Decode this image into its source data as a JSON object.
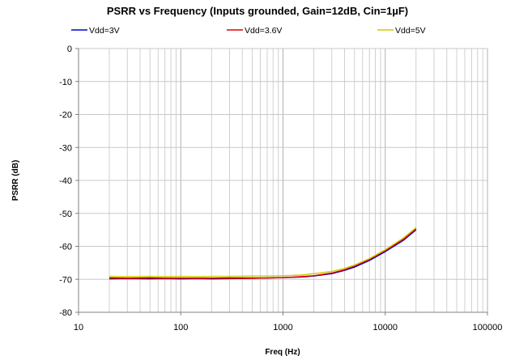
{
  "chart_data": {
    "type": "line",
    "title": "PSRR vs Frequency (Inputs grounded, Gain=12dB, Cin=1µF)",
    "xlabel": "Freq (Hz)",
    "ylabel": "PSRR (dB)",
    "xscale": "log",
    "xlim": [
      10,
      100000
    ],
    "ylim": [
      -80,
      0
    ],
    "xticks": [
      10,
      100,
      1000,
      10000,
      100000
    ],
    "xtick_labels": [
      "10",
      "100",
      "1000",
      "10000",
      "100000"
    ],
    "yticks": [
      0,
      -10,
      -20,
      -30,
      -40,
      -50,
      -60,
      -70,
      -80
    ],
    "ytick_labels": [
      "0",
      "-10",
      "-20",
      "-30",
      "-40",
      "-50",
      "-60",
      "-70",
      "-80"
    ],
    "grid": true,
    "legend_position": "top",
    "series": [
      {
        "name": "Vdd=3V",
        "color": "#0000CC",
        "x": [
          20,
          30,
          50,
          70,
          100,
          150,
          200,
          300,
          500,
          700,
          1000,
          1500,
          2000,
          3000,
          4000,
          5000,
          7000,
          10000,
          15000,
          20000
        ],
        "y": [
          -69.6,
          -69.7,
          -69.6,
          -69.7,
          -69.7,
          -69.7,
          -69.7,
          -69.6,
          -69.6,
          -69.6,
          -69.5,
          -69.3,
          -69.0,
          -68.3,
          -67.3,
          -66.3,
          -64.3,
          -61.6,
          -58.2,
          -55.0
        ]
      },
      {
        "name": "Vdd=3.6V",
        "color": "#DD0000",
        "x": [
          20,
          30,
          50,
          70,
          100,
          150,
          200,
          300,
          500,
          700,
          1000,
          1500,
          2000,
          3000,
          4000,
          5000,
          7000,
          10000,
          15000,
          20000
        ],
        "y": [
          -69.9,
          -69.8,
          -69.9,
          -69.8,
          -69.9,
          -69.8,
          -69.9,
          -69.8,
          -69.7,
          -69.6,
          -69.5,
          -69.2,
          -68.9,
          -68.1,
          -67.1,
          -66.0,
          -64.0,
          -61.3,
          -57.9,
          -54.7
        ]
      },
      {
        "name": "Vdd=5V",
        "color": "#CCCC00",
        "x": [
          20,
          30,
          50,
          70,
          100,
          150,
          200,
          300,
          500,
          700,
          1000,
          1500,
          2000,
          3000,
          4000,
          5000,
          7000,
          10000,
          15000,
          20000
        ],
        "y": [
          -69.1,
          -69.2,
          -69.1,
          -69.2,
          -69.1,
          -69.2,
          -69.1,
          -69.1,
          -69.0,
          -69.0,
          -68.9,
          -68.7,
          -68.3,
          -67.6,
          -66.7,
          -65.7,
          -63.7,
          -61.0,
          -57.5,
          -54.3
        ]
      }
    ]
  }
}
